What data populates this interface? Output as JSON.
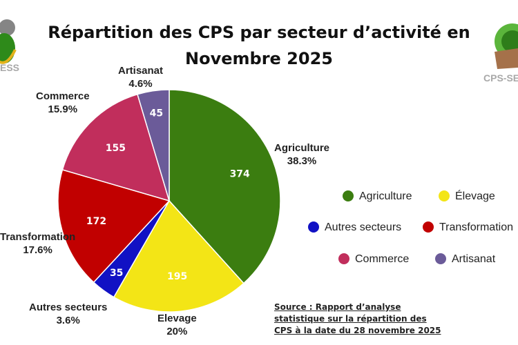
{
  "logos": {
    "left_text": "ESS",
    "right_text": "CPS-SE"
  },
  "chart_data": {
    "type": "pie",
    "title": "Répartition des CPS par secteur d’activité en Novembre 2025",
    "categories": [
      "Agriculture",
      "Elevage",
      "Autres secteurs",
      "Transformation",
      "Commerce",
      "Artisanat"
    ],
    "values": [
      374,
      195,
      35,
      172,
      155,
      45
    ],
    "percent_labels": [
      "38.3%",
      "20%",
      "3.6%",
      "17.6%",
      "15.9%",
      "4.6%"
    ],
    "colors": [
      "#3b7d10",
      "#f3e516",
      "#1111c4",
      "#c10000",
      "#c12e5c",
      "#6b5b99"
    ],
    "start": "top",
    "direction": "clockwise",
    "legend": {
      "placement": "right",
      "entries": [
        "Agriculture",
        "Élevage",
        "Autres secteurs",
        "Transformation",
        "Commerce",
        "Artisanat"
      ]
    }
  },
  "source": [
    "Source : Rapport d’analyse",
    "statistique sur la répartition des",
    "CPS à la date du 28 novembre 2025"
  ]
}
